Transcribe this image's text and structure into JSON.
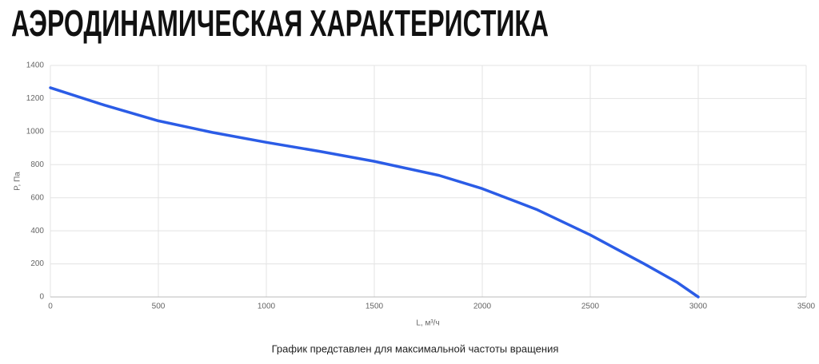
{
  "chart_data": {
    "type": "line",
    "title": "АЭРОДИНАМИЧЕСКАЯ ХАРАКТЕРИСТИКА",
    "x_label": "L, м³/ч",
    "y_label": "P, Па",
    "caption": "График представлен для максимальной частоты вращения",
    "series": [
      {
        "color": "#2b5ce6",
        "x": [
          0,
          250,
          500,
          750,
          1000,
          1250,
          1500,
          1800,
          2000,
          2250,
          2500,
          2750,
          2900,
          3000
        ],
        "values": [
          1265,
          1160,
          1065,
          995,
          935,
          880,
          820,
          735,
          655,
          530,
          375,
          200,
          90,
          0
        ]
      }
    ],
    "xlim": [
      0,
      3500
    ],
    "xticks": [
      0,
      500,
      1000,
      1500,
      2000,
      2500,
      3000,
      3500
    ],
    "ylim": [
      0,
      1400
    ],
    "yticks": [
      0,
      200,
      400,
      600,
      800,
      1000,
      1200,
      1400
    ],
    "grid": true
  }
}
